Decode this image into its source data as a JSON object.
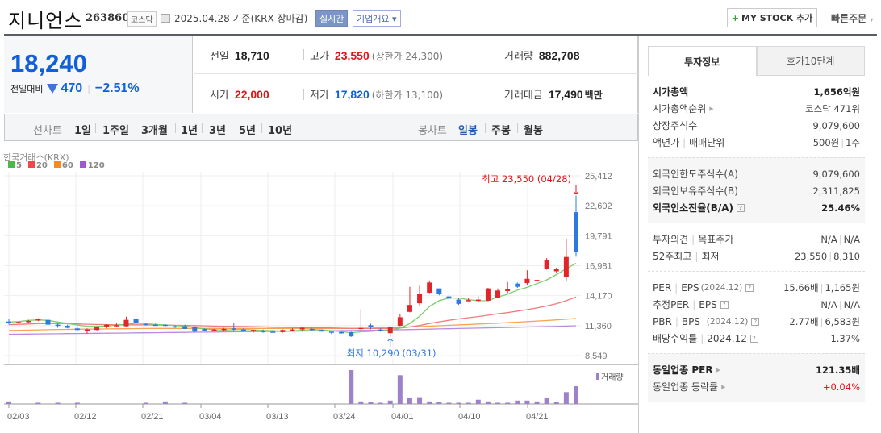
{
  "header": {
    "stock_name": "지니언스",
    "stock_code": "263860",
    "market": "코스닥",
    "date_text": "2025.04.28 기준(KRX 장마감)",
    "realtime_btn": "실시간",
    "company_btn": "기업개요 ▾",
    "mystock_plus": "+",
    "mystock_btn": "MY STOCK 추가",
    "quick_order": "빠른주문",
    "quick_order_caret": "▾"
  },
  "price": {
    "current": "18,240",
    "change_label": "전일대비",
    "change_value": "470",
    "change_pct": "−2.51%",
    "direction": "down"
  },
  "stats": {
    "prev_close_label": "전일",
    "prev_close": "18,710",
    "high_label": "고가",
    "high": "23,550",
    "upper_limit": "(상한가 24,300)",
    "volume_label": "거래량",
    "volume": "882,708",
    "open_label": "시가",
    "open": "22,000",
    "low_label": "저가",
    "low": "17,820",
    "lower_limit": "(하한가 13,100)",
    "amount_label": "거래대금",
    "amount": "17,490",
    "amount_unit": "백만"
  },
  "period_bar": {
    "line_chart_label": "선차트",
    "line_periods": [
      "1일",
      "1주일",
      "3개월",
      "1년",
      "3년",
      "5년",
      "10년"
    ],
    "candle_label": "봉차트",
    "candle_periods": [
      "일봉",
      "주봉",
      "월봉"
    ],
    "active_candle": "일봉"
  },
  "sidebar": {
    "tabs": [
      "투자정보",
      "호가10단계"
    ],
    "active_tab": "투자정보",
    "market_cap_label": "시가총액",
    "market_cap": "1,656억원",
    "market_cap_rank_label": "시가총액순위",
    "market_cap_rank": "코스닥 471위",
    "shares_label": "상장주식수",
    "shares": "9,079,600",
    "par_label": "액면가",
    "trade_unit_label": "매매단위",
    "par": "500원",
    "trade_unit": "1주",
    "foreign_limit_label": "외국인한도주식수(A)",
    "foreign_limit": "9,079,600",
    "foreign_hold_label": "외국인보유주식수(B)",
    "foreign_hold": "2,311,825",
    "foreign_ratio_label": "외국인소진율(B/A)",
    "foreign_ratio": "25.46%",
    "opinion_label": "투자의견",
    "target_label": "목표주가",
    "opinion": "N/A",
    "target": "N/A",
    "w52_high_label": "52주최고",
    "w52_low_label": "최저",
    "w52_high": "23,550",
    "w52_low": "8,310",
    "per_label": "PER",
    "eps_label": "EPS",
    "per_period": "(2024.12)",
    "per": "15.66배",
    "eps": "1,165원",
    "est_per_label": "추정PER",
    "est_eps_label": "EPS",
    "est_per": "N/A",
    "est_eps": "N/A",
    "pbr_label": "PBR",
    "bps_label": "BPS",
    "pbr_period": "(2024.12)",
    "pbr": "2.77배",
    "bps": "6,583원",
    "div_label": "배당수익률",
    "div_period": "2024.12",
    "div": "1.37%",
    "sector_per_label": "동일업종 PER",
    "sector_per": "121.35배",
    "sector_change_label": "동일업종 등락률",
    "sector_change": "+0.04%"
  },
  "chart_data": {
    "type": "candlestick",
    "source_label": "한국거래소(KRX)",
    "legend": [
      {
        "label": "5",
        "color": "#4cb848"
      },
      {
        "label": "20",
        "color": "#f04848"
      },
      {
        "label": "60",
        "color": "#f58a1f"
      },
      {
        "label": "120",
        "color": "#9c5bd0"
      }
    ],
    "y_ticks": [
      "25,412",
      "22,602",
      "19,791",
      "16,981",
      "14,170",
      "11,360",
      "8,549"
    ],
    "y_values": [
      25412,
      22602,
      19791,
      16981,
      14170,
      11360,
      8549
    ],
    "x_ticks": [
      "02/03",
      "02/12",
      "02/21",
      "03/04",
      "03/13",
      "03/24",
      "04/01",
      "04/10",
      "04/21"
    ],
    "high_annotation": "최고 23,550 (04/28)",
    "low_annotation": "최저 10,290 (03/31)",
    "volume_legend": "거래량",
    "up_color": "#e0262b",
    "down_color": "#2f78e0",
    "candles": [
      [
        11750,
        11950,
        11450,
        11600
      ],
      [
        11650,
        11750,
        11550,
        11700
      ],
      [
        11700,
        11900,
        11600,
        11800
      ],
      [
        11900,
        12050,
        11800,
        11950
      ],
      [
        11900,
        11950,
        11400,
        11450
      ],
      [
        11450,
        11650,
        11150,
        11400
      ],
      [
        11350,
        11450,
        11100,
        11150
      ],
      [
        11100,
        11200,
        10850,
        10950
      ],
      [
        10950,
        11100,
        10600,
        11000
      ],
      [
        10950,
        11300,
        10900,
        11250
      ],
      [
        11200,
        11500,
        11100,
        11450
      ],
      [
        11300,
        11600,
        11200,
        11400
      ],
      [
        11300,
        12200,
        11200,
        11900
      ],
      [
        12000,
        12100,
        11550,
        11600
      ],
      [
        11500,
        11600,
        11400,
        11450
      ],
      [
        11450,
        11550,
        11350,
        11400
      ],
      [
        11450,
        11500,
        11250,
        11350
      ],
      [
        11300,
        11400,
        11150,
        11250
      ],
      [
        11300,
        11450,
        11050,
        11050
      ],
      [
        11250,
        11300,
        10750,
        10800
      ],
      [
        11050,
        11100,
        10850,
        10900
      ],
      [
        10950,
        11050,
        10850,
        11000
      ],
      [
        10950,
        11150,
        10800,
        11050
      ],
      [
        11100,
        11650,
        10850,
        11000
      ],
      [
        11000,
        11100,
        10800,
        10950
      ],
      [
        10850,
        11000,
        10700,
        10950
      ],
      [
        10850,
        11000,
        10700,
        10800
      ],
      [
        10800,
        10950,
        10700,
        10750
      ],
      [
        10750,
        11000,
        10700,
        10950
      ],
      [
        10950,
        11100,
        10800,
        11000
      ],
      [
        11000,
        11200,
        10900,
        11150
      ],
      [
        11050,
        11150,
        10900,
        10950
      ],
      [
        10950,
        11000,
        10800,
        10800
      ],
      [
        10800,
        10900,
        10550,
        10750
      ],
      [
        10750,
        10800,
        10600,
        10700
      ],
      [
        10750,
        10800,
        10300,
        10350
      ],
      [
        11050,
        12900,
        10900,
        11150
      ],
      [
        11400,
        11550,
        11000,
        11200
      ],
      [
        11000,
        11100,
        10800,
        10850
      ],
      [
        10650,
        11200,
        10290,
        11200
      ],
      [
        11350,
        12400,
        11300,
        12150
      ],
      [
        12650,
        15000,
        12600,
        13300
      ],
      [
        13450,
        15100,
        13250,
        14350
      ],
      [
        14450,
        15600,
        14400,
        15400
      ],
      [
        14850,
        14700,
        14200,
        14300
      ],
      [
        14100,
        14450,
        13700,
        13900
      ],
      [
        13800,
        13950,
        13300,
        13400
      ],
      [
        13750,
        13950,
        13650,
        13750
      ],
      [
        13700,
        14100,
        13600,
        13800
      ],
      [
        13700,
        14900,
        13650,
        14850
      ],
      [
        13950,
        14850,
        13950,
        14650
      ],
      [
        14600,
        15450,
        14400,
        14800
      ],
      [
        15300,
        15400,
        14900,
        15000
      ],
      [
        15350,
        16550,
        15150,
        15750
      ],
      [
        15550,
        16800,
        15600,
        15650
      ],
      [
        16650,
        17700,
        16600,
        17500
      ],
      [
        16450,
        16800,
        16300,
        16700
      ],
      [
        15950,
        19500,
        15500,
        17800
      ],
      [
        22000,
        23550,
        17820,
        18240
      ]
    ],
    "ma5": [
      11700,
      11740,
      11850,
      11900,
      11850,
      11700,
      11550,
      11420,
      11300,
      11280,
      11330,
      11390,
      11480,
      11590,
      11540,
      11470,
      11420,
      11380,
      11300,
      11170,
      11060,
      10980,
      10950,
      10980,
      11000,
      10960,
      10910,
      10880,
      10850,
      10870,
      10930,
      10980,
      10970,
      10880,
      10800,
      10700,
      10780,
      10820,
      10900,
      10910,
      11120,
      11550,
      12250,
      13150,
      13700,
      13950,
      13950,
      13800,
      13690,
      13700,
      14050,
      14300,
      14700,
      14950,
      15300,
      15650,
      16150,
      16700,
      17200
    ],
    "ma20": [
      11450,
      11480,
      11510,
      11540,
      11560,
      11560,
      11550,
      11520,
      11490,
      11470,
      11450,
      11440,
      11440,
      11440,
      11430,
      11420,
      11400,
      11390,
      11380,
      11360,
      11340,
      11320,
      11300,
      11290,
      11280,
      11260,
      11240,
      11220,
      11200,
      11180,
      11170,
      11160,
      11150,
      11140,
      11120,
      11100,
      11100,
      11100,
      11100,
      11090,
      11130,
      11230,
      11380,
      11560,
      11720,
      11860,
      11990,
      12100,
      12210,
      12340,
      12470,
      12580,
      12720,
      12860,
      13020,
      13200,
      13420,
      13700,
      14050
    ],
    "ma60": [
      10900,
      10920,
      10940,
      10960,
      10980,
      11000,
      11010,
      11020,
      11030,
      11040,
      11050,
      11060,
      11070,
      11080,
      11090,
      11100,
      11100,
      11100,
      11100,
      11100,
      11100,
      11100,
      11100,
      11100,
      11100,
      11100,
      11100,
      11100,
      11100,
      11100,
      11100,
      11100,
      11100,
      11100,
      11100,
      11100,
      11110,
      11130,
      11150,
      11170,
      11200,
      11230,
      11270,
      11310,
      11350,
      11390,
      11430,
      11470,
      11510,
      11550,
      11590,
      11640,
      11690,
      11740,
      11790,
      11840,
      11900,
      11960,
      12030
    ],
    "ma120": [
      10550,
      10560,
      10570,
      10580,
      10590,
      10600,
      10610,
      10620,
      10630,
      10640,
      10650,
      10660,
      10670,
      10680,
      10690,
      10700,
      10710,
      10720,
      10730,
      10740,
      10750,
      10760,
      10770,
      10780,
      10790,
      10800,
      10810,
      10820,
      10830,
      10840,
      10850,
      10860,
      10870,
      10880,
      10890,
      10900,
      10910,
      10920,
      10930,
      10950,
      10970,
      10990,
      11010,
      11030,
      11050,
      11070,
      11090,
      11110,
      11130,
      11150,
      11170,
      11190,
      11210,
      11230,
      11250,
      11270,
      11290,
      11320,
      11350
    ],
    "volume": [
      3,
      0,
      0,
      1,
      0,
      1,
      0,
      1,
      0,
      0,
      0,
      0,
      0,
      0,
      1,
      0,
      3,
      0,
      1,
      0,
      0,
      0,
      0,
      0,
      0,
      0,
      0,
      0,
      0,
      0,
      0,
      0,
      0,
      0,
      0,
      40,
      3,
      2,
      1,
      4,
      34,
      7,
      8,
      3,
      2,
      1,
      1,
      1,
      5,
      3,
      1,
      1,
      4,
      4,
      3,
      7,
      2,
      14,
      21
    ]
  }
}
